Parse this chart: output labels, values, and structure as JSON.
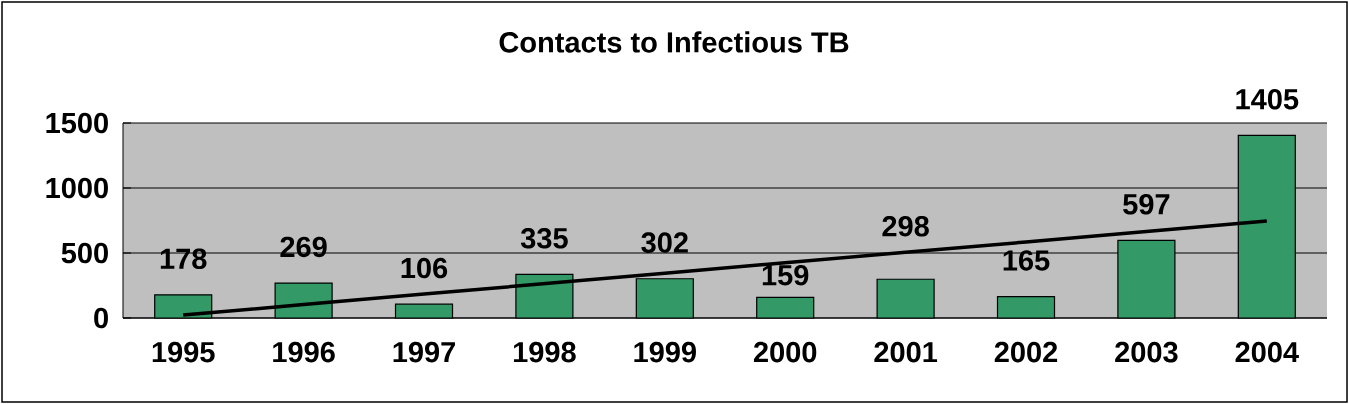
{
  "chart_data": {
    "type": "bar",
    "title": "Contacts to Infectious TB",
    "categories": [
      "1995",
      "1996",
      "1997",
      "1998",
      "1999",
      "2000",
      "2001",
      "2002",
      "2003",
      "2004"
    ],
    "series": [
      {
        "color": "#339966",
        "values": [
          178,
          269,
          106,
          335,
          302,
          159,
          298,
          165,
          597,
          1405
        ],
        "value_labels": [
          "178",
          "269",
          "106",
          "335",
          "302",
          "159",
          "298",
          "165",
          "597",
          "1405"
        ]
      },
      {
        "type": "line",
        "color": "#000000",
        "values": [
          23,
          103,
          184,
          264,
          344,
          425,
          505,
          585,
          666,
          746
        ]
      }
    ],
    "ylim": [
      0,
      1500
    ],
    "yticks": [
      0,
      500,
      1000,
      1500
    ],
    "grid": "y"
  }
}
